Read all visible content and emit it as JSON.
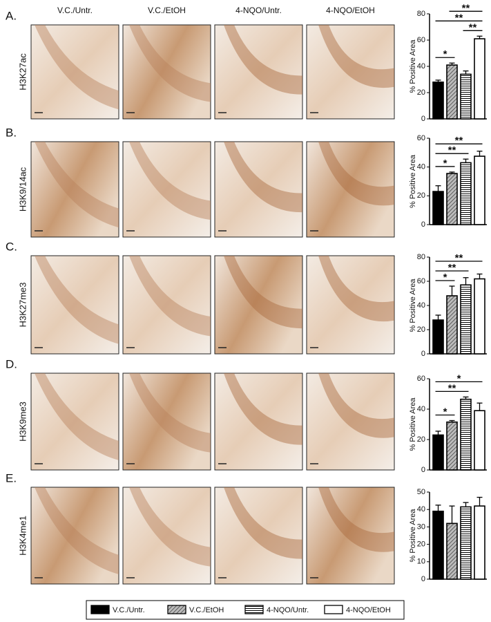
{
  "column_headers": [
    "V.C./Untr.",
    "V.C./EtOH",
    "4-NQO/Untr.",
    "4-NQO/EtOH"
  ],
  "rows": [
    {
      "letter": "A.",
      "label": "H3K27ac"
    },
    {
      "letter": "B.",
      "label": "H3K9/14ac"
    },
    {
      "letter": "C.",
      "label": "H3K27me3"
    },
    {
      "letter": "D.",
      "label": "H3K9me3"
    },
    {
      "letter": "E.",
      "label": "H3K4me1"
    }
  ],
  "legend": [
    "V.C./Untr.",
    "V.C./EtOH",
    "4-NQO/Untr.",
    "4-NQO/EtOH"
  ],
  "chart_data": [
    {
      "type": "bar",
      "ylabel": "% Positive Area",
      "values": [
        28,
        41,
        34,
        61
      ],
      "errors": [
        1.5,
        1.5,
        2.5,
        2
      ],
      "ylim": [
        0,
        80
      ],
      "yticks": [
        0,
        20,
        40,
        60,
        80
      ],
      "annotations": [
        {
          "text": "*",
          "between": [
            0,
            1
          ]
        },
        {
          "text": "**",
          "between": [
            2,
            3
          ]
        },
        {
          "text": "**",
          "between": [
            0,
            3
          ]
        },
        {
          "text": "**",
          "between": [
            1,
            3
          ]
        }
      ]
    },
    {
      "type": "bar",
      "ylabel": "% Positive Area",
      "values": [
        23,
        35.5,
        43,
        47.5
      ],
      "errors": [
        4,
        1,
        2.5,
        3.5
      ],
      "ylim": [
        0,
        60
      ],
      "yticks": [
        0,
        20,
        40,
        60
      ],
      "annotations": [
        {
          "text": "*",
          "between": [
            0,
            1
          ]
        },
        {
          "text": "**",
          "between": [
            0,
            2
          ]
        },
        {
          "text": "**",
          "between": [
            0,
            3
          ]
        }
      ]
    },
    {
      "type": "bar",
      "ylabel": "% Positive Area",
      "values": [
        28,
        48,
        57,
        62
      ],
      "errors": [
        4,
        8,
        6,
        4
      ],
      "ylim": [
        0,
        80
      ],
      "yticks": [
        0,
        20,
        40,
        60,
        80
      ],
      "annotations": [
        {
          "text": "*",
          "between": [
            0,
            1
          ]
        },
        {
          "text": "**",
          "between": [
            0,
            2
          ]
        },
        {
          "text": "**",
          "between": [
            0,
            3
          ]
        }
      ]
    },
    {
      "type": "bar",
      "ylabel": "% Positive Area",
      "values": [
        23,
        31.5,
        46.5,
        39
      ],
      "errors": [
        2.5,
        1,
        1.5,
        5
      ],
      "ylim": [
        0,
        60
      ],
      "yticks": [
        0,
        20,
        40,
        60
      ],
      "annotations": [
        {
          "text": "*",
          "between": [
            0,
            1
          ]
        },
        {
          "text": "**",
          "between": [
            0,
            2
          ]
        },
        {
          "text": "*",
          "between": [
            0,
            3
          ]
        }
      ]
    },
    {
      "type": "bar",
      "ylabel": "% Positive Area",
      "values": [
        39,
        32,
        41.5,
        42
      ],
      "errors": [
        3.5,
        10,
        2.5,
        5
      ],
      "ylim": [
        0,
        50
      ],
      "yticks": [
        0,
        10,
        20,
        30,
        40,
        50
      ],
      "annotations": []
    }
  ]
}
